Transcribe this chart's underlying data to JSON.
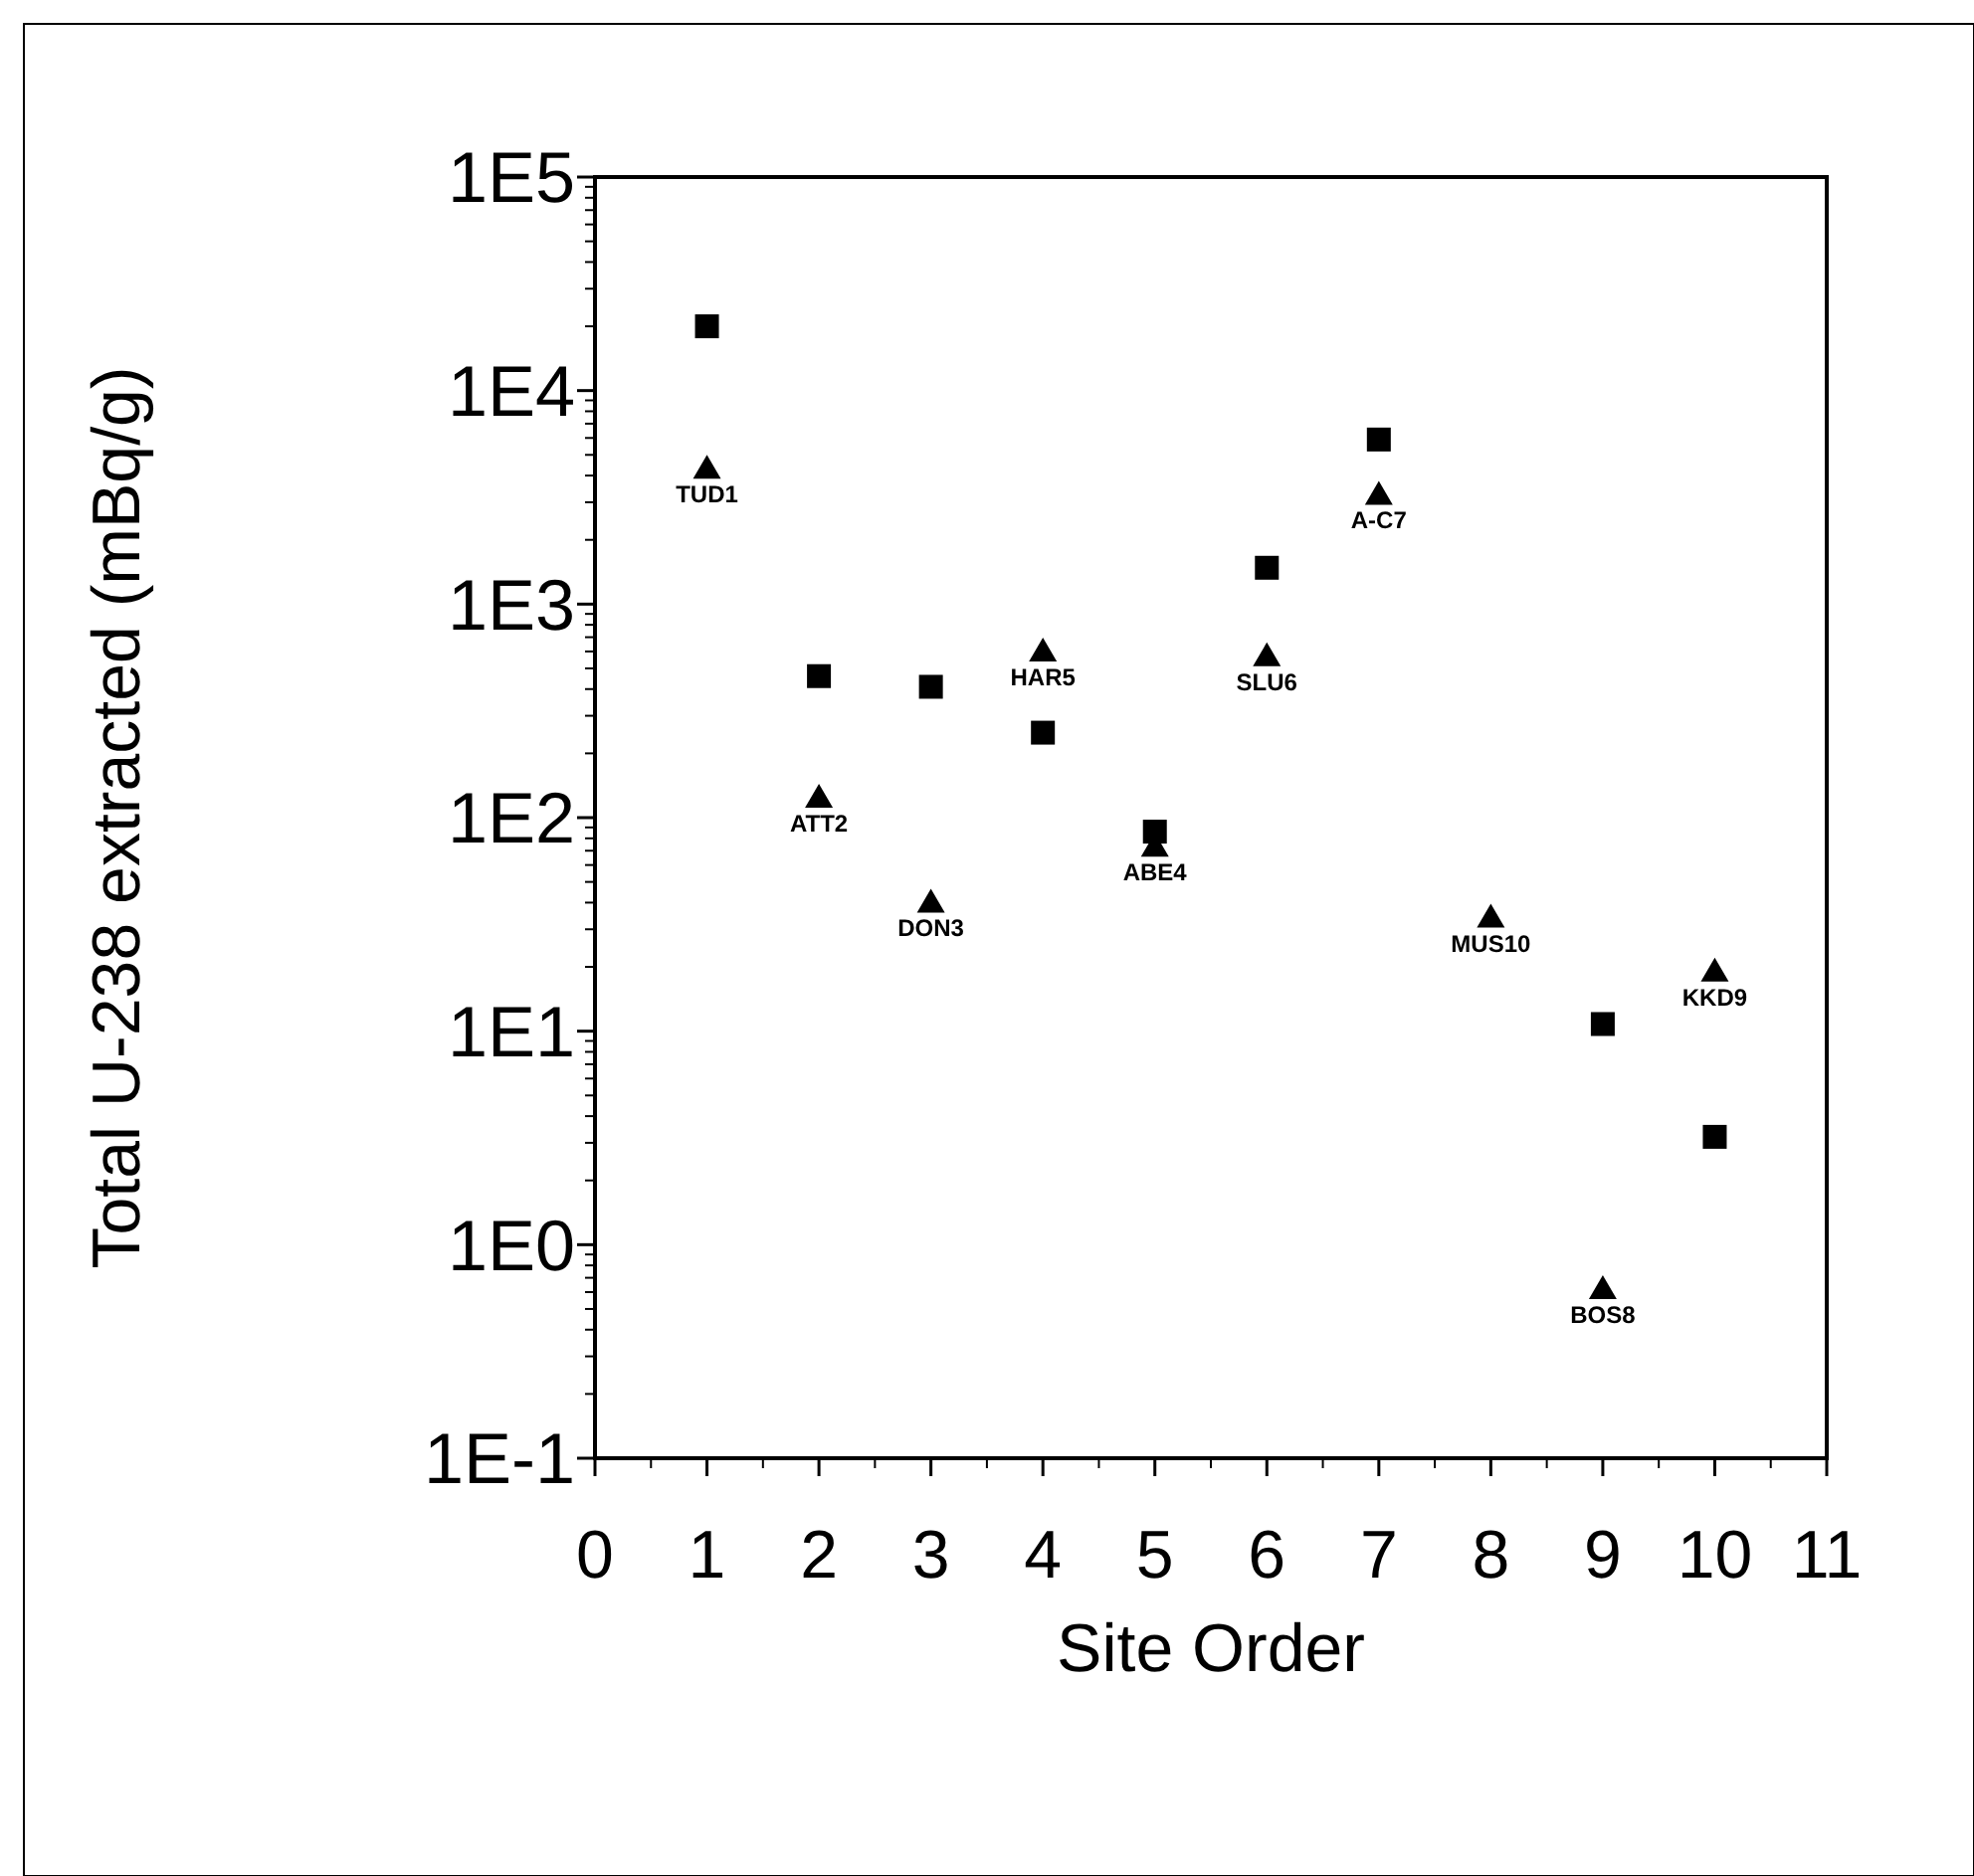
{
  "chart_data": {
    "type": "scatter",
    "xlabel": "Site Order",
    "ylabel": "Total U-238 extracted (mBq/g)",
    "log": "y",
    "xlim": [
      0,
      11
    ],
    "xticks": [
      0,
      1,
      2,
      3,
      4,
      5,
      6,
      7,
      8,
      9,
      10,
      11
    ],
    "ylim": [
      0.1,
      100000
    ],
    "yticks": [
      {
        "value": 0.1,
        "label": "1E-1"
      },
      {
        "value": 1,
        "label": "1E0"
      },
      {
        "value": 10,
        "label": "1E1"
      },
      {
        "value": 100,
        "label": "1E2"
      },
      {
        "value": 1000,
        "label": "1E3"
      },
      {
        "value": 10000,
        "label": "1E4"
      },
      {
        "value": 100000,
        "label": "1E5"
      }
    ],
    "grid": false,
    "series": [
      {
        "color": "#000000",
        "marker": "square",
        "x": [
          1,
          2,
          3,
          4,
          5,
          6,
          7,
          9,
          10
        ],
        "values": [
          20000,
          460,
          410,
          250,
          86,
          1480,
          5900,
          10.8,
          3.2
        ]
      },
      {
        "color": "#000000",
        "marker": "triangle",
        "x": [
          1,
          2,
          3,
          4,
          5,
          6,
          7,
          8,
          9,
          10
        ],
        "values": [
          4300,
          124,
          40,
          600,
          73,
          570,
          3250,
          34,
          0.62,
          19
        ]
      }
    ],
    "annotations": [
      {
        "text": "TUD1",
        "x": 1,
        "y": 4300
      },
      {
        "text": "ATT2",
        "x": 2,
        "y": 124
      },
      {
        "text": "DON3",
        "x": 3,
        "y": 40
      },
      {
        "text": "HAR5",
        "x": 4,
        "y": 600
      },
      {
        "text": "ABE4",
        "x": 5,
        "y": 73
      },
      {
        "text": "SLU6",
        "x": 6,
        "y": 570
      },
      {
        "text": "A-C7",
        "x": 7,
        "y": 3250
      },
      {
        "text": "MUS10",
        "x": 8,
        "y": 34
      },
      {
        "text": "BOS8",
        "x": 9,
        "y": 0.62
      },
      {
        "text": "KKD9",
        "x": 10,
        "y": 19
      }
    ]
  }
}
